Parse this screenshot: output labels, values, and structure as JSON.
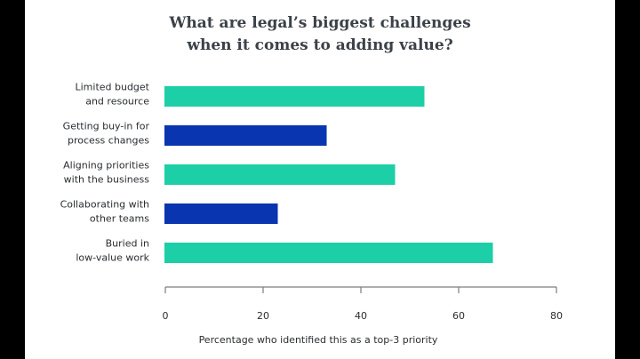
{
  "chart_data": {
    "type": "bar",
    "orientation": "horizontal",
    "title": [
      "What are legal’s biggest challenges",
      "when it comes to adding value?"
    ],
    "categories": [
      [
        "Limited budget",
        "and resource"
      ],
      [
        "Getting buy-in for",
        "process changes"
      ],
      [
        "Aligning priorities",
        "with the business"
      ],
      [
        "Collaborating with",
        "other teams"
      ],
      [
        "Buried in",
        "low-value work"
      ]
    ],
    "values": [
      53,
      33,
      47,
      23,
      67
    ],
    "bar_colors": [
      "#1DCFA6",
      "#0A35B0",
      "#1DCFA6",
      "#0A35B0",
      "#1DCFA6"
    ],
    "xlabel": "Percentage who identified this as a top-3 priority",
    "ylabel": "",
    "xlim": [
      0,
      80
    ],
    "xticks": [
      0,
      20,
      40,
      60,
      80
    ],
    "grid": false,
    "legend": "none"
  }
}
